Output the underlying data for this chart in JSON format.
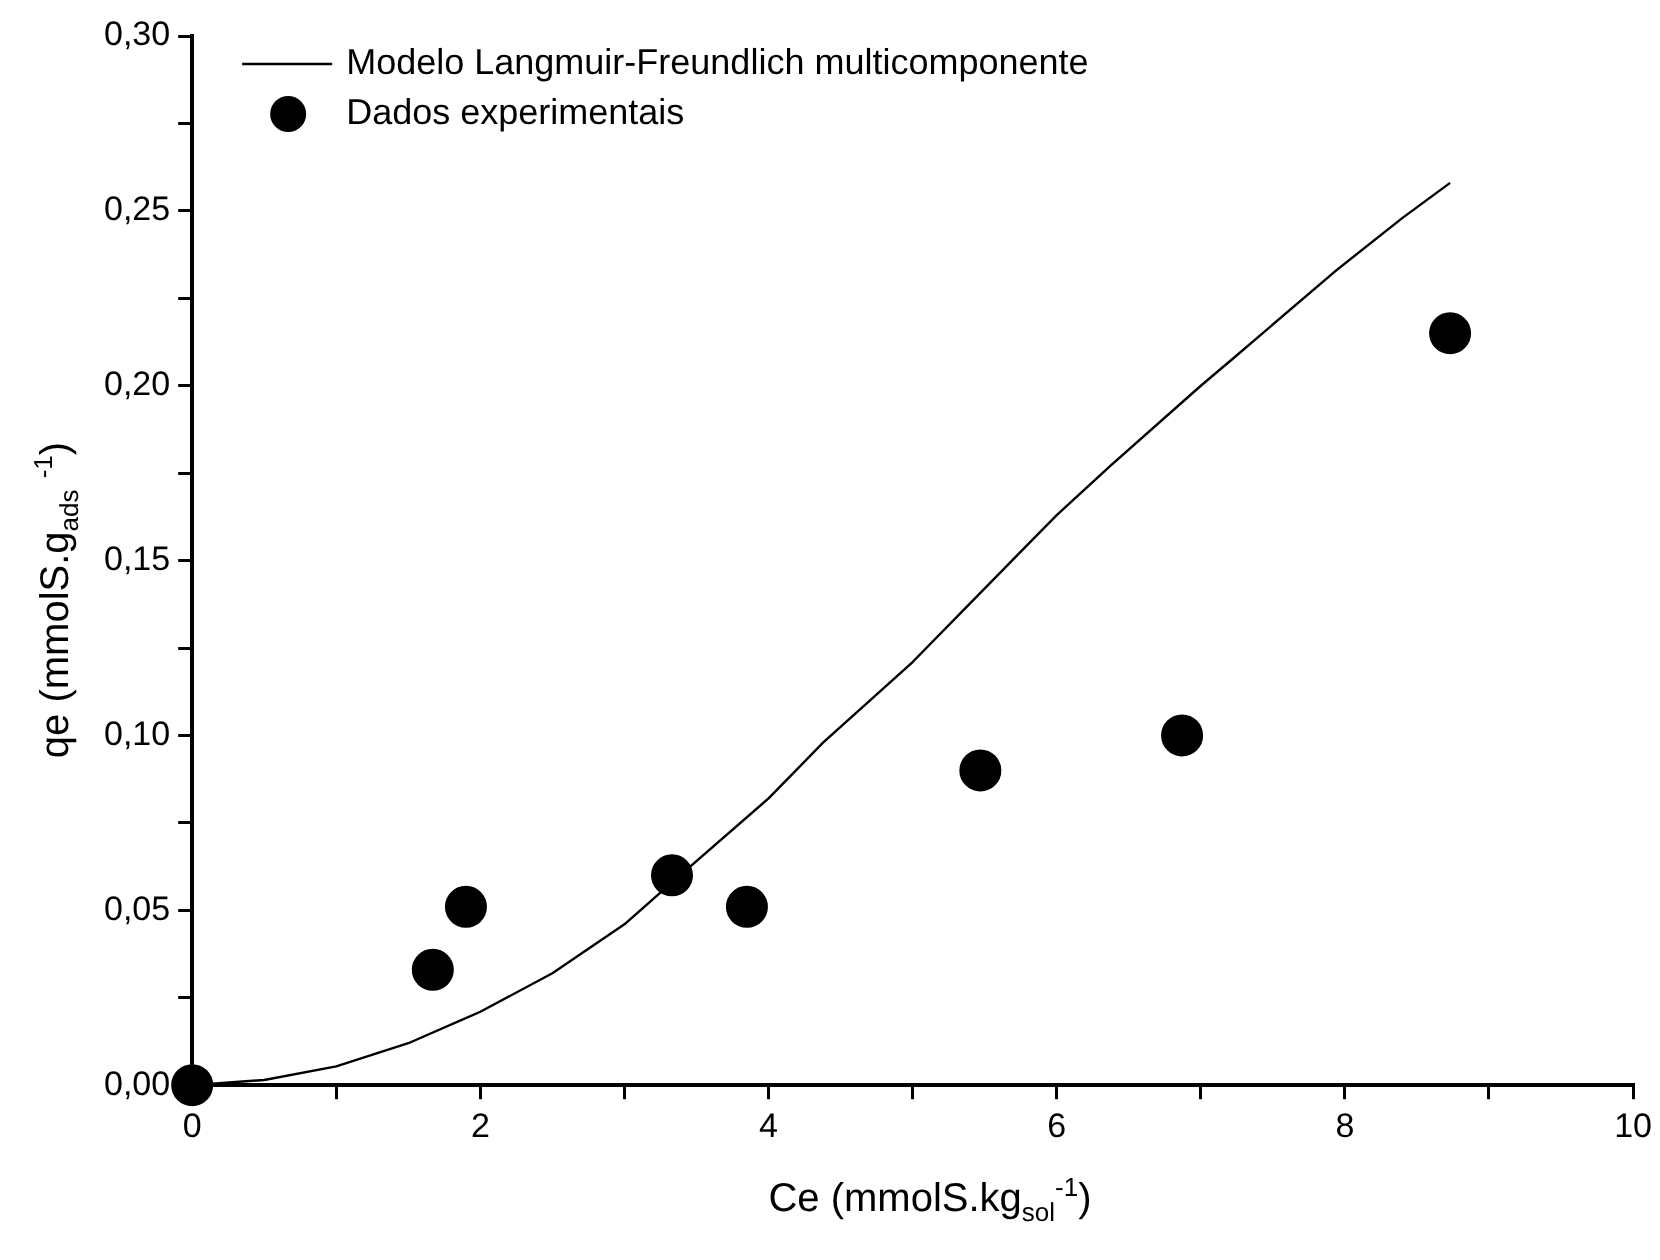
{
  "chart_data": {
    "type": "scatter",
    "xlabel": "Ce (mmolS.kg$_{sol}$$^{-1}$)",
    "ylabel": "qe (mmolS.g$_{ads}$ $^{-1}$)",
    "xlim": [
      0,
      10
    ],
    "ylim": [
      0,
      0.3
    ],
    "xticks": [
      0,
      {
        "value": 1,
        "label": null
      },
      2,
      {
        "value": 3,
        "label": null
      },
      4,
      {
        "value": 5,
        "label": null
      },
      6,
      {
        "value": 7,
        "label": null
      },
      8,
      {
        "value": 9,
        "label": null
      },
      10
    ],
    "yticks": [
      {
        "value": 0,
        "label": "0,00"
      },
      {
        "value": 0.025,
        "label": null
      },
      {
        "value": 0.05,
        "label": "0,05"
      },
      {
        "value": 0.075,
        "label": null
      },
      {
        "value": 0.1,
        "label": "0,10"
      },
      {
        "value": 0.125,
        "label": null
      },
      {
        "value": 0.15,
        "label": "0,15"
      },
      {
        "value": 0.175,
        "label": null
      },
      {
        "value": 0.2,
        "label": "0,20"
      },
      {
        "value": 0.225,
        "label": null
      },
      {
        "value": 0.25,
        "label": "0,25"
      },
      {
        "value": 0.275,
        "label": null
      },
      {
        "value": 0.3,
        "label": "0,30"
      }
    ],
    "legend": "top left",
    "grid": false,
    "series": [
      {
        "name": "Modelo Langmuir-Freundlich multicomponente",
        "type": "line",
        "color": "#000000",
        "marker": "none",
        "line_style": "solid",
        "x": [
          0,
          0.5,
          1,
          1.5,
          2,
          2.5,
          3,
          3.33,
          4,
          4.38,
          5,
          5.38,
          6,
          6.37,
          7,
          7.23,
          7.94,
          8.4,
          8.73
        ],
        "values": [
          0,
          0.0015,
          0.0054,
          0.012,
          0.021,
          0.032,
          0.046,
          0.058,
          0.082,
          0.098,
          0.121,
          0.137,
          0.163,
          0.177,
          0.2,
          0.208,
          0.233,
          0.248,
          0.258
        ]
      },
      {
        "name": "Dados experimentais",
        "color": "#000000",
        "marker": "circle",
        "x": [
          0,
          1.67,
          1.9,
          3.33,
          3.85,
          5.47,
          6.87,
          8.73
        ],
        "values": [
          0,
          0.033,
          0.051,
          0.06,
          0.051,
          0.09,
          0.1,
          0.215
        ]
      }
    ]
  }
}
